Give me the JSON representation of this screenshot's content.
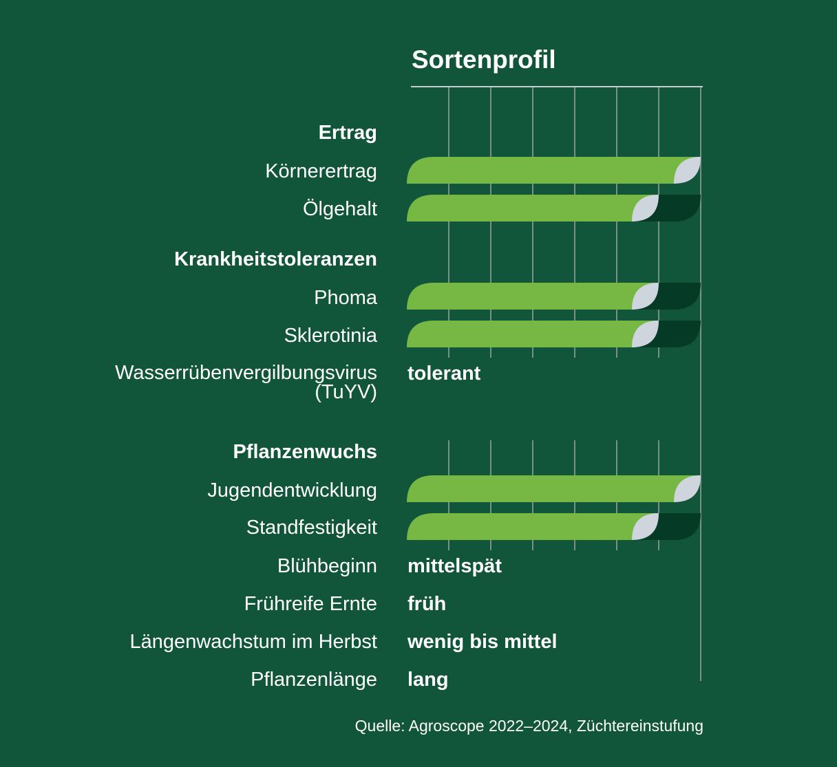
{
  "colors": {
    "background": "#11553b",
    "bar_fill": "#76b843",
    "bar_track": "#053b26",
    "leaf": "#cfd5dc",
    "grid": "#9aa8a0"
  },
  "chart_data": {
    "type": "bar",
    "orientation": "horizontal",
    "title": "Sortenprofil",
    "xlim": [
      0,
      7
    ],
    "grid": true,
    "source": "Quelle: Agroscope 2022–2024, Züchtereinstufung",
    "sections": [
      {
        "name": "Ertrag",
        "rows": [
          {
            "label": "Körnerertrag",
            "value": 7
          },
          {
            "label": "Ölgehalt",
            "value": 6
          }
        ]
      },
      {
        "name": "Krankheitstoleranzen",
        "rows": [
          {
            "label": "Phoma",
            "value": 6
          },
          {
            "label": "Sklerotinia",
            "value": 6
          },
          {
            "label": "Wasserrübenvergilbungsvirus\n(TuYV)",
            "text": "tolerant"
          }
        ]
      },
      {
        "name": "Pflanzenwuchs",
        "rows": [
          {
            "label": "Jugendentwicklung",
            "value": 7
          },
          {
            "label": "Standfestigkeit",
            "value": 6
          },
          {
            "label": "Blühbeginn",
            "text": "mittelspät"
          },
          {
            "label": "Frühreife Ernte",
            "text": "früh"
          },
          {
            "label": "Längenwachstum im Herbst",
            "text": "wenig bis mittel"
          },
          {
            "label": "Pflanzenlänge",
            "text": "lang"
          }
        ]
      }
    ]
  }
}
